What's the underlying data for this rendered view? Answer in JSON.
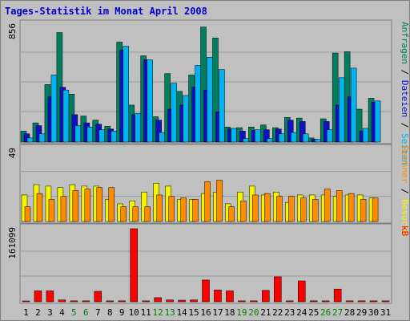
{
  "colors": {
    "panel_bg": "#c0c0c0",
    "border": "#808080",
    "grid": "#9a9a9a",
    "title": "#0000cc",
    "tick": "#000000",
    "weekend": "#008000",
    "anfragen": "#007f5f",
    "dateien": "#1010c8",
    "seiten": "#00b4f0",
    "besuche": "#f5f500",
    "rechner": "#ff8c00",
    "kb": "#ff0000"
  },
  "chart_data": {
    "type": "bar",
    "title": "Tages-Statistik im Monat April 2008",
    "days": [
      "1",
      "2",
      "3",
      "4",
      "5",
      "6",
      "7",
      "8",
      "9",
      "10",
      "11",
      "12",
      "13",
      "14",
      "15",
      "16",
      "17",
      "18",
      "19",
      "20",
      "21",
      "22",
      "23",
      "24",
      "25",
      "26",
      "27",
      "28",
      "29",
      "30",
      "31"
    ],
    "weekend_days": [
      "5",
      "6",
      "12",
      "13",
      "19",
      "20",
      "26",
      "27"
    ],
    "panels": [
      {
        "id": "top",
        "ymax_label": "856",
        "ymax": 856,
        "right_label_parts": [
          {
            "text": "Anfragen",
            "color_key": "anfragen"
          },
          {
            "text": " / ",
            "color_key": "tick"
          },
          {
            "text": "Dateien",
            "color_key": "dateien"
          },
          {
            "text": " / ",
            "color_key": "tick"
          },
          {
            "text": "Seiten",
            "color_key": "seiten"
          }
        ],
        "series": [
          {
            "name": "Anfragen",
            "color_key": "anfragen",
            "values": [
              80,
              140,
              420,
              800,
              350,
              190,
              160,
              115,
              730,
              270,
              630,
              185,
              500,
              370,
              490,
              840,
              760,
              110,
              105,
              110,
              125,
              105,
              180,
              175,
              30,
              170,
              650,
              660,
              240,
              320,
              0
            ]
          },
          {
            "name": "Dateien",
            "color_key": "dateien",
            "values": [
              60,
              120,
              330,
              400,
              200,
              140,
              130,
              95,
              670,
              200,
              600,
              160,
              240,
              270,
              400,
              380,
              220,
              95,
              80,
              85,
              90,
              95,
              160,
              150,
              20,
              150,
              270,
              330,
              80,
              290,
              0
            ]
          },
          {
            "name": "Seiten",
            "color_key": "seiten",
            "values": [
              30,
              60,
              490,
              380,
              120,
              110,
              90,
              80,
              700,
              210,
              600,
              70,
              430,
              340,
              560,
              620,
              530,
              100,
              25,
              90,
              25,
              60,
              70,
              60,
              20,
              90,
              470,
              540,
              100,
              300,
              0
            ]
          }
        ]
      },
      {
        "id": "middle",
        "ymax_label": "49",
        "ymax": 49,
        "right_label_parts": [
          {
            "text": "Rechner",
            "color_key": "rechner"
          },
          {
            "text": " / ",
            "color_key": "tick"
          },
          {
            "text": "Besuche",
            "color_key": "besuche"
          }
        ],
        "series": [
          {
            "name": "Besuche",
            "color_key": "besuche",
            "values": [
              18,
              25,
              24,
              23,
              25,
              24,
              24,
              15,
              12,
              14,
              20,
              26,
              24,
              15,
              15,
              19,
              20,
              12,
              20,
              24,
              18,
              20,
              13,
              18,
              18,
              18,
              17,
              18,
              18,
              16,
              0
            ]
          },
          {
            "name": "Rechner",
            "color_key": "rechner",
            "values": [
              10,
              19,
              15,
              17,
              21,
              22,
              23,
              23,
              10,
              10,
              10,
              18,
              17,
              16,
              15,
              27,
              28,
              10,
              14,
              18,
              19,
              17,
              17,
              16,
              15,
              22,
              21,
              19,
              15,
              16,
              0
            ]
          }
        ]
      },
      {
        "id": "bottom",
        "ymax_label": "161099",
        "ymax": 161099,
        "right_label_parts": [
          {
            "text": "kB",
            "color_key": "kb"
          }
        ],
        "series": [
          {
            "name": "kB",
            "color_key": "kb",
            "values": [
              1500,
              24000,
              24000,
              4000,
              2000,
              2000,
              23000,
              2000,
              2000,
              161099,
              2000,
              9000,
              4000,
              3500,
              4000,
              48000,
              26000,
              24000,
              2000,
              2000,
              25000,
              55000,
              2000,
              46000,
              2000,
              2000,
              28000,
              2000,
              2000,
              2000,
              2000
            ]
          }
        ]
      }
    ]
  }
}
